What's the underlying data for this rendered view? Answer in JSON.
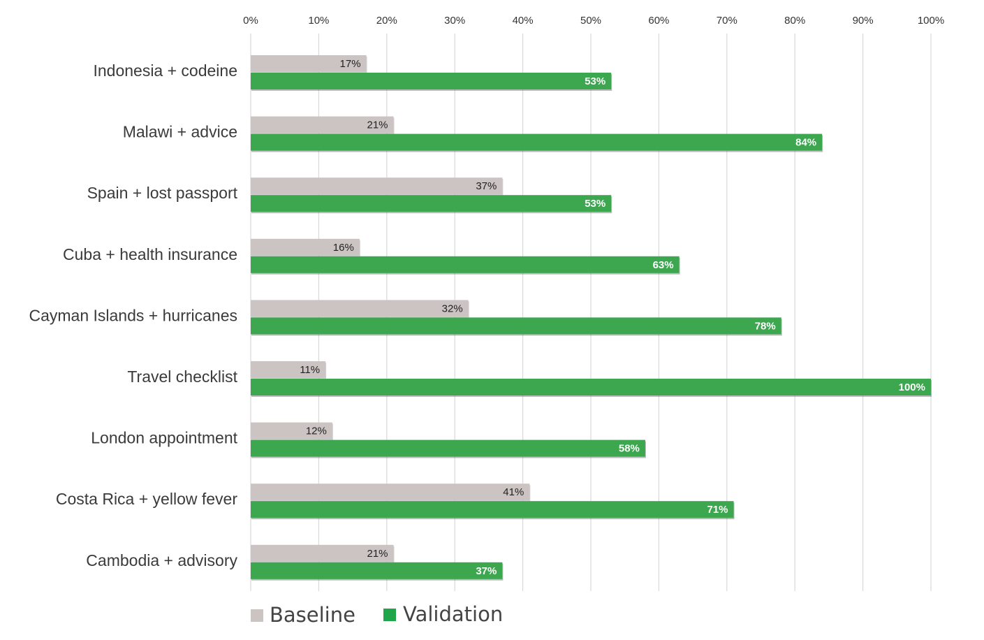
{
  "chart_data": {
    "type": "bar",
    "orientation": "horizontal",
    "categories": [
      "Indonesia + codeine",
      "Malawi + advice",
      "Spain + lost passport",
      "Cuba + health insurance",
      "Cayman Islands + hurricanes",
      "Travel checklist",
      "London appointment",
      "Costa Rica + yellow fever",
      "Cambodia + advisory"
    ],
    "series": [
      {
        "name": "Baseline",
        "color": "#cbc4c2",
        "values": [
          17,
          21,
          37,
          16,
          32,
          11,
          12,
          41,
          21
        ],
        "labels": [
          "17%",
          "21%",
          "37%",
          "16%",
          "32%",
          "11%",
          "12%",
          "41%",
          "21%"
        ]
      },
      {
        "name": "Validation",
        "color": "#3ca74f",
        "values": [
          53,
          84,
          53,
          63,
          78,
          100,
          58,
          71,
          37
        ],
        "labels": [
          "53%",
          "84%",
          "53%",
          "63%",
          "78%",
          "100%",
          "58%",
          "71%",
          "37%"
        ]
      }
    ],
    "xlim": [
      0,
      100
    ],
    "x_ticks": [
      0,
      10,
      20,
      30,
      40,
      50,
      60,
      70,
      80,
      90,
      100
    ],
    "x_tick_labels": [
      "0%",
      "10%",
      "20%",
      "30%",
      "40%",
      "50%",
      "60%",
      "70%",
      "80%",
      "90%",
      "100%"
    ],
    "x_axis_position": "top",
    "grid": "vertical",
    "legend": {
      "position": "bottom-left",
      "entries": [
        "Baseline",
        "Validation"
      ]
    }
  }
}
